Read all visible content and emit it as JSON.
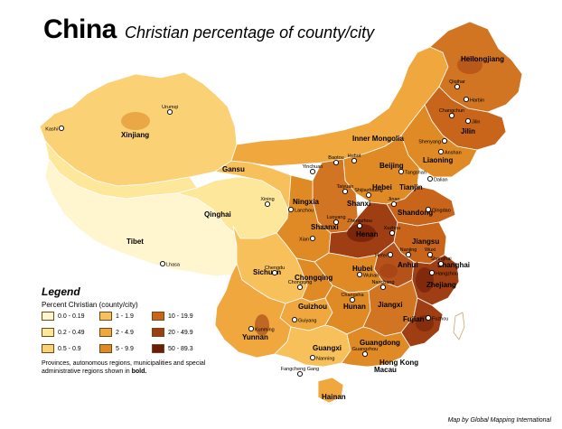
{
  "title": "China",
  "subtitle": "Christian percentage of county/city",
  "legend": {
    "title": "Legend",
    "subtitle": "Percent Christian (county/city)",
    "classes": [
      {
        "label": "0.0 - 0.19",
        "color": "#fff6cf"
      },
      {
        "label": "0.2 - 0.49",
        "color": "#fde79a"
      },
      {
        "label": "0.5 - 0.9",
        "color": "#fbd176"
      },
      {
        "label": "1 - 1.9",
        "color": "#f7c05b"
      },
      {
        "label": "2 - 4.9",
        "color": "#efa73e"
      },
      {
        "label": "5 - 9.9",
        "color": "#e08a26"
      },
      {
        "label": "10 - 19.9",
        "color": "#c9651a"
      },
      {
        "label": "20 - 49.9",
        "color": "#9e3e12"
      },
      {
        "label": "50 - 89.3",
        "color": "#6c1c08"
      }
    ],
    "note_prefix": "Provinces, autonomous regions, municipalities and special administrative regions shown in ",
    "note_bold": "bold."
  },
  "credit": "Map by Global Mapping International",
  "colors": {
    "border": "#8a6a3a",
    "province_border": "#ffffff",
    "sea": "#ffffff",
    "city_marker_fill": "#ffffff",
    "city_marker_stroke": "#000000"
  },
  "provinces": {
    "xinjiang": "Xinjiang",
    "tibet": "Tibet",
    "qinghai": "Qinghai",
    "gansu": "Gansu",
    "inner_mongolia": "Inner Mongolia",
    "heilongjiang": "Heilongjiang",
    "jilin": "Jilin",
    "liaoning": "Liaoning",
    "beijing": "Beijing",
    "tianjin": "Tianjin",
    "hebei": "Hebei",
    "shanxi": "Shanxi",
    "shandong": "Shandong",
    "ningxia": "Ningxia",
    "shaanxi": "Shaanxi",
    "henan": "Henan",
    "jiangsu": "Jiangsu",
    "anhui": "Anhui",
    "shanghai": "Shanghai",
    "hubei": "Hubei",
    "sichuan": "Sichuan",
    "chongqing": "Chongqing",
    "zhejiang": "Zhejiang",
    "guizhou": "Guizhou",
    "hunan": "Hunan",
    "jiangxi": "Jiangxi",
    "fujian": "Fujian",
    "yunnan": "Yunnan",
    "guangxi": "Guangxi",
    "guangdong": "Guangdong",
    "hong_kong": "Hong Kong",
    "macau": "Macau",
    "hainan": "Hainan"
  },
  "cities": {
    "kashi": "Kashi",
    "urumqi": "Urumqi",
    "lhasa": "Lhasa",
    "xining": "Xining",
    "lanzhou": "Lanzhou",
    "yinchuan": "Yinchuan",
    "baotou": "Baotou",
    "huhot": "Huhot",
    "qiqihar": "Qiqihar",
    "harbin": "Harbin",
    "changchun": "Changchun",
    "jilin_city": "Jilin",
    "shenyang": "Shenyang",
    "anshan": "Anshan",
    "dalian": "Dalian",
    "tangshan": "Tangshan",
    "taiyuan": "Taiyuan",
    "shijiazhuang": "Shijiazhuang",
    "jinan": "Jinan",
    "qingdao": "Qingdao",
    "xian": "Xian",
    "luoyang": "Luoyang",
    "zhengzhou": "Zhengzhou",
    "xuzhou": "Xuzhou",
    "nanjing": "Nanjing",
    "hefei": "Hefei",
    "wuxi": "Wuxi",
    "shanghai_city": "Shanghai",
    "hangzhou": "Hangzhou",
    "wuhan": "Wuhan",
    "chengdu": "Chengdu",
    "chongqing_city": "Chongqing",
    "nanchang": "Nanchang",
    "changsha": "Changsha",
    "guiyang": "Guiyang",
    "kunming": "Kunming",
    "fuzhou": "Fuzhou",
    "nanning": "Nanning",
    "guangzhou": "Guangzhou",
    "fangcheng_gang": "Fangcheng Gang"
  }
}
